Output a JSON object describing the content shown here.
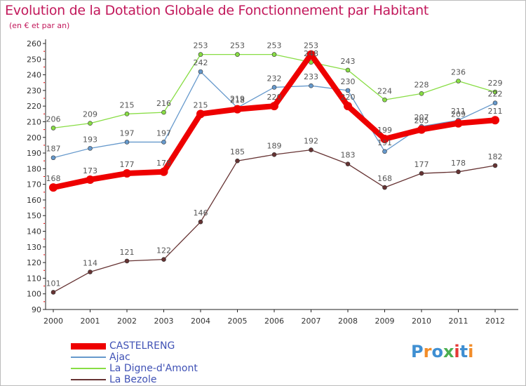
{
  "chart_data": {
    "type": "line",
    "title": "Evolution de la Dotation Globale de Fonctionnement par Habitant",
    "subtitle": "(en € et par an)",
    "x": [
      "2000",
      "2001",
      "2002",
      "2003",
      "2004",
      "2005",
      "2006",
      "2007",
      "2008",
      "2009",
      "2010",
      "2011",
      "2012"
    ],
    "ylim": [
      90,
      260
    ],
    "yticks": [
      90,
      100,
      110,
      120,
      130,
      140,
      150,
      160,
      170,
      180,
      190,
      200,
      210,
      220,
      230,
      240,
      250,
      260
    ],
    "grid": false,
    "legend": "bottom-left",
    "series": [
      {
        "name": "CASTELRENG",
        "color": "#ee0000",
        "values": [
          168,
          173,
          177,
          178,
          215,
          218,
          220,
          253,
          220,
          199,
          205,
          209,
          211
        ]
      },
      {
        "name": "Ajac",
        "color": "#6699cc",
        "values": [
          187,
          193,
          197,
          197,
          242,
          219,
          232,
          233,
          230,
          191,
          207,
          211,
          222
        ]
      },
      {
        "name": "La Digne-d'Amont",
        "color": "#88dd44",
        "values": [
          206,
          209,
          215,
          216,
          253,
          253,
          253,
          248,
          243,
          224,
          228,
          236,
          229
        ]
      },
      {
        "name": "La Bezole",
        "color": "#663333",
        "values": [
          101,
          114,
          121,
          122,
          146,
          185,
          189,
          192,
          183,
          168,
          177,
          178,
          182
        ]
      }
    ]
  },
  "brand": {
    "text": "Proxiti",
    "colors": [
      "#3f8fd2",
      "#f28c28",
      "#3f8fd2",
      "#4caf50",
      "#e53935",
      "#3f8fd2",
      "#f28c28"
    ]
  }
}
